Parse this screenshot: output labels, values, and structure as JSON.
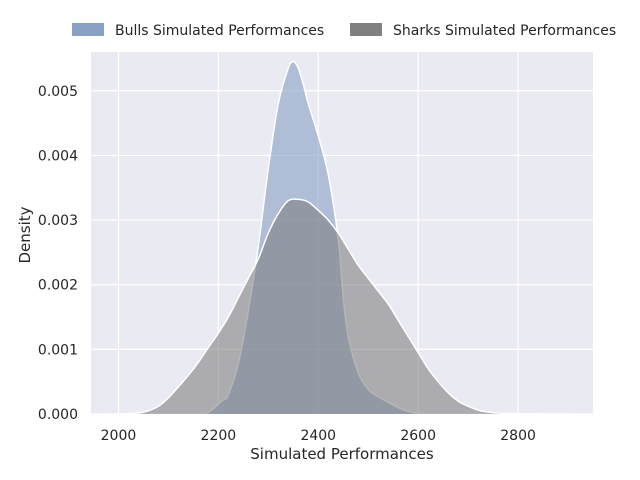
{
  "chart_data": {
    "type": "area",
    "title": "",
    "xlabel": "Simulated Performances",
    "ylabel": "Density",
    "xlim": [
      1945,
      2950
    ],
    "ylim": [
      0,
      0.0056
    ],
    "x_ticks": [
      2000,
      2200,
      2400,
      2600,
      2800
    ],
    "y_ticks": [
      0.0,
      0.001,
      0.002,
      0.003,
      0.004,
      0.005
    ],
    "x_tick_labels": [
      "2000",
      "2200",
      "2400",
      "2600",
      "2800"
    ],
    "y_tick_labels": [
      "0.000",
      "0.001",
      "0.002",
      "0.003",
      "0.004",
      "0.005"
    ],
    "grid": true,
    "legend_position": "top",
    "legend": [
      "Bulls Simulated Performances",
      "Sharks Simulated Performances"
    ],
    "series": [
      {
        "name": "Bulls Simulated Performances",
        "color": "#8aa1c6",
        "x": [
          2175,
          2190,
          2200,
          2210,
          2220,
          2240,
          2260,
          2280,
          2300,
          2320,
          2340,
          2350,
          2360,
          2370,
          2380,
          2400,
          2420,
          2440,
          2450,
          2460,
          2480,
          2500,
          2520,
          2540,
          2560,
          2580,
          2600,
          2610,
          2625
        ],
        "y": [
          0.0,
          8e-05,
          0.00016,
          0.00022,
          0.0003,
          0.00078,
          0.0016,
          0.0026,
          0.0038,
          0.0048,
          0.00535,
          0.00545,
          0.00535,
          0.0051,
          0.0048,
          0.0043,
          0.0037,
          0.0027,
          0.0018,
          0.0012,
          0.00064,
          0.00038,
          0.00027,
          0.00018,
          0.0001,
          4e-05,
          1e-05,
          3e-06,
          0.0
        ]
      },
      {
        "name": "Sharks Simulated Performances",
        "color": "#808080",
        "x": [
          1985,
          2000,
          2020,
          2040,
          2060,
          2080,
          2100,
          2120,
          2140,
          2160,
          2180,
          2200,
          2220,
          2240,
          2260,
          2280,
          2300,
          2320,
          2340,
          2360,
          2380,
          2400,
          2420,
          2440,
          2460,
          2480,
          2500,
          2520,
          2540,
          2560,
          2580,
          2600,
          2620,
          2640,
          2660,
          2680,
          2700,
          2720,
          2740,
          2760,
          2800,
          2850,
          2910
        ],
        "y": [
          0.0,
          2e-06,
          5e-06,
          1.5e-05,
          5e-05,
          0.00012,
          0.00025,
          0.00042,
          0.0006,
          0.0008,
          0.00103,
          0.00125,
          0.0015,
          0.0018,
          0.0021,
          0.0024,
          0.0028,
          0.0031,
          0.0033,
          0.00332,
          0.00328,
          0.00315,
          0.003,
          0.0028,
          0.00255,
          0.0023,
          0.0021,
          0.0019,
          0.0017,
          0.00145,
          0.0012,
          0.00095,
          0.0007,
          0.0005,
          0.00033,
          0.0002,
          0.00012,
          6e-05,
          3e-05,
          1.5e-05,
          4e-06,
          1e-06,
          0.0
        ]
      }
    ]
  }
}
